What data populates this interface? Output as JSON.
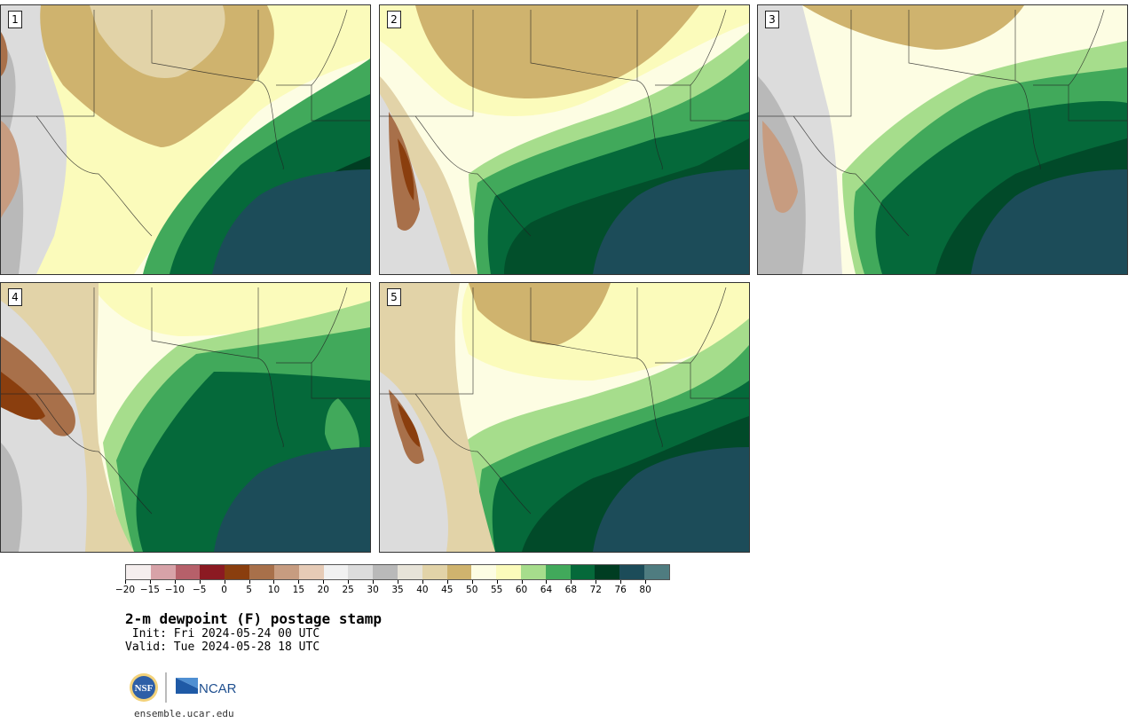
{
  "panels": [
    {
      "label": "1"
    },
    {
      "label": "2"
    },
    {
      "label": "3"
    },
    {
      "label": "4"
    },
    {
      "label": "5"
    }
  ],
  "legend": {
    "colors": [
      "#f5eeee",
      "#d7a2a8",
      "#b6606a",
      "#8b1a22",
      "#8a3e0e",
      "#a8704a",
      "#c79c80",
      "#e6cbb6",
      "#f1f1f1",
      "#dcdcdc",
      "#b9b9b9",
      "#e7e3d8",
      "#e2d3a8",
      "#cfb36e",
      "#fdfde3",
      "#fbfbbb",
      "#a6dd8c",
      "#41a95b",
      "#05693a",
      "#003d22",
      "#1c4c59",
      "#4f7c80"
    ],
    "ticks": [
      "−20",
      "−15",
      "−10",
      "−5",
      "0",
      "5",
      "10",
      "15",
      "20",
      "25",
      "30",
      "35",
      "40",
      "45",
      "50",
      "55",
      "60",
      "64",
      "68",
      "72",
      "76",
      "80"
    ]
  },
  "title": "2-m dewpoint (F) postage stamp",
  "init": " Init: Fri 2024-05-24 00 UTC",
  "valid": "Valid: Tue 2024-05-28 18 UTC",
  "logos": {
    "nsf": "NSF",
    "ncar": "NCAR"
  },
  "site": "ensemble.ucar.edu"
}
